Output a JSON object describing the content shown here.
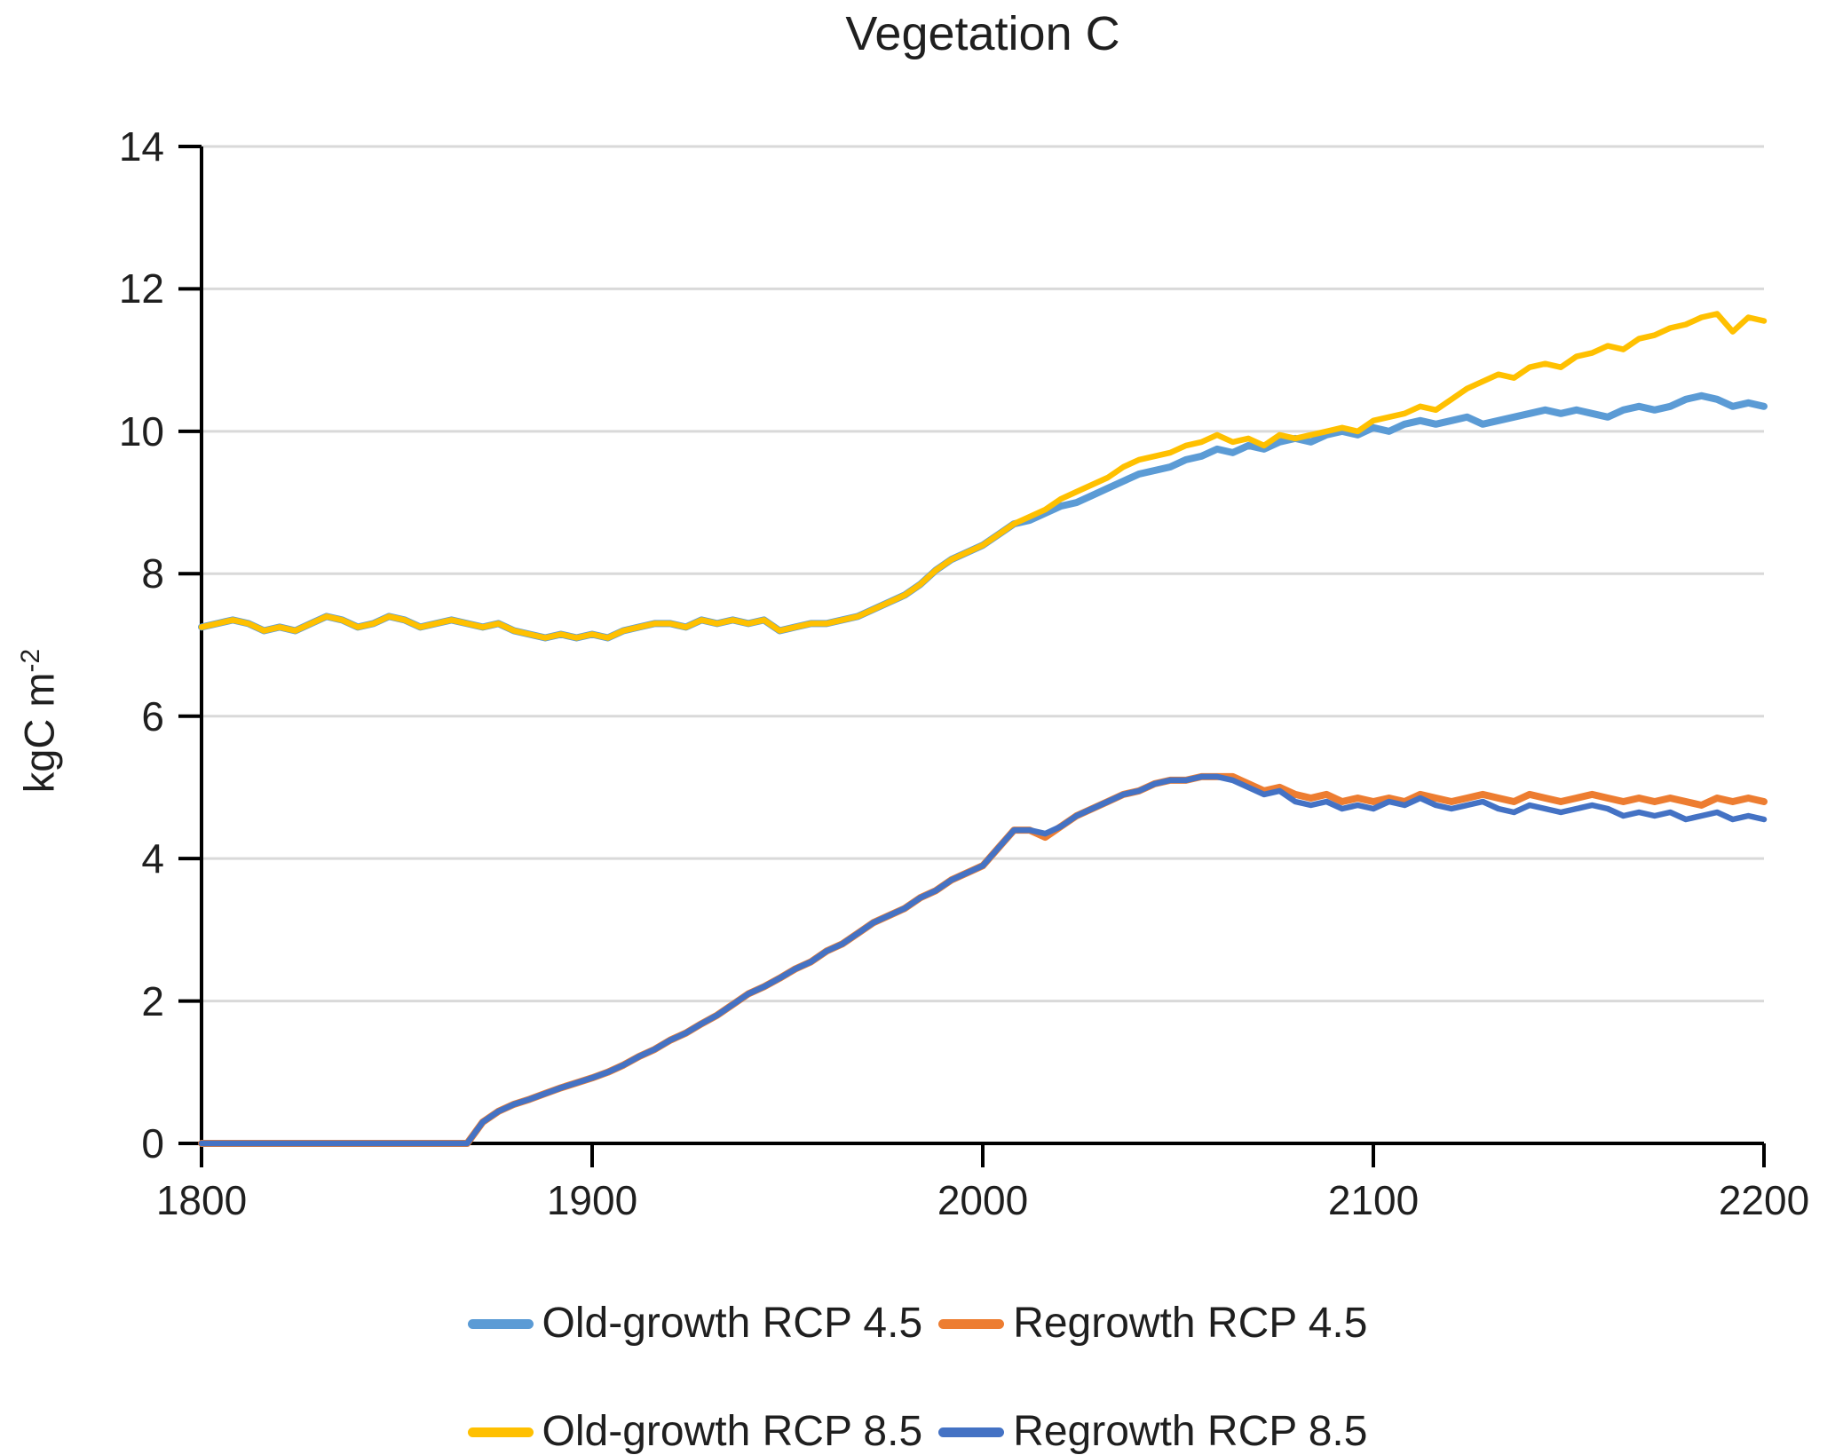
{
  "title": "Vegetation C",
  "y_axis": {
    "title_main": "kgC m",
    "title_sup": "-2",
    "ticks": [
      0,
      2,
      4,
      6,
      8,
      10,
      12,
      14
    ]
  },
  "x_axis": {
    "ticks": [
      1800,
      1900,
      2000,
      2100,
      2200
    ]
  },
  "colors": {
    "grid": "#D9D9D9",
    "axis": "#000000",
    "text": "#1f1f1f"
  },
  "chart_data": {
    "type": "line",
    "title": "Vegetation C",
    "xlabel": "",
    "ylabel": "kgC m-2",
    "xlim": [
      1800,
      2200
    ],
    "ylim": [
      0,
      14
    ],
    "grid": "horizontal gridlines at every 2 units, color #D9D9D9",
    "legend_position": "bottom, two rows",
    "x": [
      1800,
      1804,
      1808,
      1812,
      1816,
      1820,
      1824,
      1828,
      1832,
      1836,
      1840,
      1844,
      1848,
      1852,
      1856,
      1860,
      1864,
      1868,
      1872,
      1876,
      1880,
      1884,
      1888,
      1892,
      1896,
      1900,
      1904,
      1908,
      1912,
      1916,
      1920,
      1924,
      1928,
      1932,
      1936,
      1940,
      1944,
      1948,
      1952,
      1956,
      1960,
      1964,
      1968,
      1972,
      1976,
      1980,
      1984,
      1988,
      1992,
      1996,
      2000,
      2004,
      2008,
      2012,
      2016,
      2020,
      2024,
      2028,
      2032,
      2036,
      2040,
      2044,
      2048,
      2052,
      2056,
      2060,
      2064,
      2068,
      2072,
      2076,
      2080,
      2084,
      2088,
      2092,
      2096,
      2100,
      2104,
      2108,
      2112,
      2116,
      2120,
      2124,
      2128,
      2132,
      2136,
      2140,
      2144,
      2148,
      2152,
      2156,
      2160,
      2164,
      2168,
      2172,
      2176,
      2180,
      2184,
      2188,
      2192,
      2196,
      2200
    ],
    "series": [
      {
        "name": "Old-growth RCP 4.5",
        "color": "#5B9BD5",
        "stroke_width": 8,
        "values": [
          7.25,
          7.3,
          7.35,
          7.3,
          7.2,
          7.25,
          7.2,
          7.3,
          7.4,
          7.35,
          7.25,
          7.3,
          7.4,
          7.35,
          7.25,
          7.3,
          7.35,
          7.3,
          7.25,
          7.3,
          7.2,
          7.15,
          7.1,
          7.15,
          7.1,
          7.15,
          7.1,
          7.2,
          7.25,
          7.3,
          7.3,
          7.25,
          7.35,
          7.3,
          7.35,
          7.3,
          7.35,
          7.2,
          7.25,
          7.3,
          7.3,
          7.35,
          7.4,
          7.5,
          7.6,
          7.7,
          7.85,
          8.05,
          8.2,
          8.3,
          8.4,
          8.55,
          8.7,
          8.75,
          8.85,
          8.95,
          9.0,
          9.1,
          9.2,
          9.3,
          9.4,
          9.45,
          9.5,
          9.6,
          9.65,
          9.75,
          9.7,
          9.8,
          9.75,
          9.85,
          9.9,
          9.85,
          9.95,
          10.0,
          9.95,
          10.05,
          10.0,
          10.1,
          10.15,
          10.1,
          10.15,
          10.2,
          10.1,
          10.15,
          10.2,
          10.25,
          10.3,
          10.25,
          10.3,
          10.25,
          10.2,
          10.3,
          10.35,
          10.3,
          10.35,
          10.45,
          10.5,
          10.45,
          10.35,
          10.4,
          10.35
        ]
      },
      {
        "name": "Regrowth RCP 4.5",
        "color": "#ED7D31",
        "stroke_width": 8,
        "values": [
          0,
          0,
          0,
          0,
          0,
          0,
          0,
          0,
          0,
          0,
          0,
          0,
          0,
          0,
          0,
          0,
          0,
          0,
          0.3,
          0.45,
          0.55,
          0.62,
          0.7,
          0.78,
          0.85,
          0.92,
          1.0,
          1.1,
          1.22,
          1.32,
          1.45,
          1.55,
          1.68,
          1.8,
          1.95,
          2.1,
          2.2,
          2.32,
          2.45,
          2.55,
          2.7,
          2.8,
          2.95,
          3.1,
          3.2,
          3.3,
          3.45,
          3.55,
          3.7,
          3.8,
          3.9,
          4.15,
          4.4,
          4.4,
          4.3,
          4.45,
          4.6,
          4.7,
          4.8,
          4.9,
          4.95,
          5.05,
          5.1,
          5.1,
          5.15,
          5.15,
          5.15,
          5.05,
          4.95,
          5.0,
          4.9,
          4.85,
          4.9,
          4.8,
          4.85,
          4.8,
          4.85,
          4.8,
          4.9,
          4.85,
          4.8,
          4.85,
          4.9,
          4.85,
          4.8,
          4.9,
          4.85,
          4.8,
          4.85,
          4.9,
          4.85,
          4.8,
          4.85,
          4.8,
          4.85,
          4.8,
          4.75,
          4.85,
          4.8,
          4.85,
          4.8
        ]
      },
      {
        "name": "Old-growth RCP 8.5",
        "color": "#FFC000",
        "stroke_width": 6.5,
        "values": [
          7.25,
          7.3,
          7.35,
          7.3,
          7.2,
          7.25,
          7.2,
          7.3,
          7.4,
          7.35,
          7.25,
          7.3,
          7.4,
          7.35,
          7.25,
          7.3,
          7.35,
          7.3,
          7.25,
          7.3,
          7.2,
          7.15,
          7.1,
          7.15,
          7.1,
          7.15,
          7.1,
          7.2,
          7.25,
          7.3,
          7.3,
          7.25,
          7.35,
          7.3,
          7.35,
          7.3,
          7.35,
          7.2,
          7.25,
          7.3,
          7.3,
          7.35,
          7.4,
          7.5,
          7.6,
          7.7,
          7.85,
          8.05,
          8.2,
          8.3,
          8.4,
          8.55,
          8.7,
          8.8,
          8.9,
          9.05,
          9.15,
          9.25,
          9.35,
          9.5,
          9.6,
          9.65,
          9.7,
          9.8,
          9.85,
          9.95,
          9.85,
          9.9,
          9.8,
          9.95,
          9.9,
          9.95,
          10.0,
          10.05,
          10.0,
          10.15,
          10.2,
          10.25,
          10.35,
          10.3,
          10.45,
          10.6,
          10.7,
          10.8,
          10.75,
          10.9,
          10.95,
          10.9,
          11.05,
          11.1,
          11.2,
          11.15,
          11.3,
          11.35,
          11.45,
          11.5,
          11.6,
          11.65,
          11.4,
          11.6,
          11.55
        ]
      },
      {
        "name": "Regrowth RCP 8.5",
        "color": "#4472C4",
        "stroke_width": 6.5,
        "values": [
          0,
          0,
          0,
          0,
          0,
          0,
          0,
          0,
          0,
          0,
          0,
          0,
          0,
          0,
          0,
          0,
          0,
          0,
          0.3,
          0.45,
          0.55,
          0.62,
          0.7,
          0.78,
          0.85,
          0.92,
          1.0,
          1.1,
          1.22,
          1.32,
          1.45,
          1.55,
          1.68,
          1.8,
          1.95,
          2.1,
          2.2,
          2.32,
          2.45,
          2.55,
          2.7,
          2.8,
          2.95,
          3.1,
          3.2,
          3.3,
          3.45,
          3.55,
          3.7,
          3.8,
          3.9,
          4.15,
          4.4,
          4.4,
          4.35,
          4.45,
          4.6,
          4.7,
          4.8,
          4.9,
          4.95,
          5.05,
          5.1,
          5.1,
          5.15,
          5.15,
          5.1,
          5.0,
          4.9,
          4.95,
          4.8,
          4.75,
          4.8,
          4.7,
          4.75,
          4.7,
          4.8,
          4.75,
          4.85,
          4.75,
          4.7,
          4.75,
          4.8,
          4.7,
          4.65,
          4.75,
          4.7,
          4.65,
          4.7,
          4.75,
          4.7,
          4.6,
          4.65,
          4.6,
          4.65,
          4.55,
          4.6,
          4.65,
          4.55,
          4.6,
          4.55
        ]
      }
    ]
  },
  "legend": {
    "rows": [
      [
        {
          "label": "Old-growth RCP 4.5",
          "series_index": 0
        },
        {
          "label": "Regrowth RCP 4.5",
          "series_index": 1
        }
      ],
      [
        {
          "label": "Old-growth RCP 8.5",
          "series_index": 2
        },
        {
          "label": "Regrowth RCP 8.5",
          "series_index": 3
        }
      ]
    ]
  }
}
